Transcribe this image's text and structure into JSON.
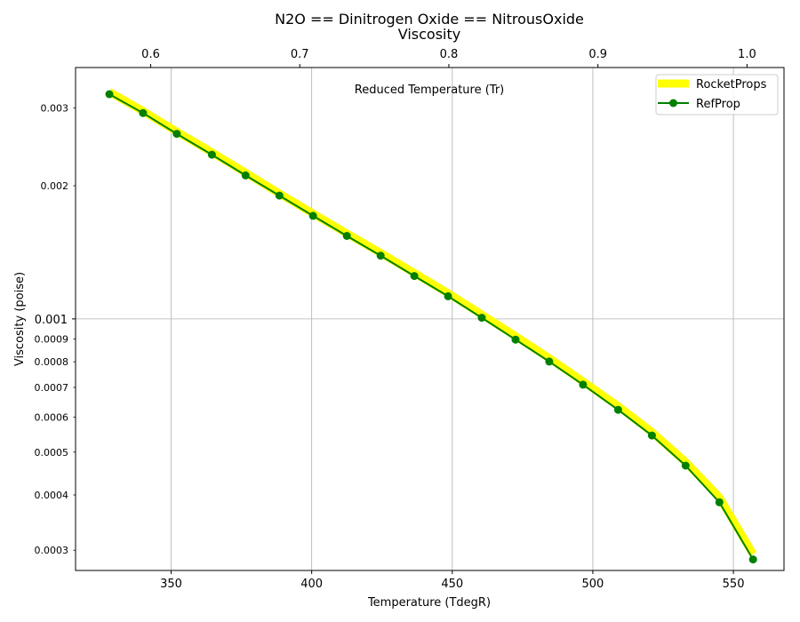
{
  "chart_data": {
    "type": "line",
    "title_line1": "N2O == Dinitrogen Oxide == NitrousOxide",
    "title_line2": "Viscosity",
    "xlabel": "Temperature (TdegR)",
    "ylabel": "Viscosity (poise)",
    "top_xlabel": "Reduced Temperature (Tr)",
    "yscale": "log",
    "xlim": [
      316,
      568
    ],
    "ylim": [
      0.00027,
      0.0037
    ],
    "top_xlim": [
      0.5496,
      1.0248
    ],
    "x_ticks": [
      {
        "value": 350,
        "label": "350"
      },
      {
        "value": 400,
        "label": "400"
      },
      {
        "value": 450,
        "label": "450"
      },
      {
        "value": 500,
        "label": "500"
      },
      {
        "value": 550,
        "label": "550"
      }
    ],
    "top_x_ticks": [
      {
        "value": 0.6,
        "label": "0.6"
      },
      {
        "value": 0.7,
        "label": "0.7"
      },
      {
        "value": 0.8,
        "label": "0.8"
      },
      {
        "value": 0.9,
        "label": "0.9"
      },
      {
        "value": 1.0,
        "label": "1.0"
      }
    ],
    "y_major_ticks": [
      {
        "value": 0.001,
        "label": "0.001"
      }
    ],
    "y_minor_ticks": [
      {
        "value": 0.0003,
        "label": "0.0003"
      },
      {
        "value": 0.0004,
        "label": "0.0004"
      },
      {
        "value": 0.0005,
        "label": "0.0005"
      },
      {
        "value": 0.0006,
        "label": "0.0006"
      },
      {
        "value": 0.0007,
        "label": "0.0007"
      },
      {
        "value": 0.0008,
        "label": "0.0008"
      },
      {
        "value": 0.0009,
        "label": "0.0009"
      },
      {
        "value": 0.002,
        "label": "0.002"
      },
      {
        "value": 0.003,
        "label": "0.003"
      }
    ],
    "grid": true,
    "legend_position": "upper right",
    "x": [
      328,
      340,
      352,
      364.5,
      376.5,
      388.5,
      400.5,
      412.5,
      424.5,
      436.5,
      448.5,
      460.5,
      472.5,
      484.5,
      496.5,
      509,
      521,
      533,
      545,
      557
    ],
    "series": [
      {
        "name": "RocketProps",
        "color": "#ffff00",
        "style": "thick-line",
        "values": [
          0.00326,
          0.00295,
          0.00265,
          0.00238,
          0.00214,
          0.00192,
          0.00173,
          0.00156,
          0.00141,
          0.00127,
          0.001143,
          0.001023,
          0.000914,
          0.000815,
          0.000722,
          0.000635,
          0.000555,
          0.000475,
          0.000395,
          0.000294
        ]
      },
      {
        "name": "RefProp",
        "color": "#008000",
        "style": "line-with-circle-markers",
        "values": [
          0.00322,
          0.00292,
          0.00262,
          0.00235,
          0.00211,
          0.0019,
          0.00171,
          0.00154,
          0.00139,
          0.00125,
          0.001125,
          0.001006,
          0.000898,
          0.000801,
          0.00071,
          0.000623,
          0.000545,
          0.000466,
          0.000385,
          0.000286
        ]
      }
    ]
  }
}
